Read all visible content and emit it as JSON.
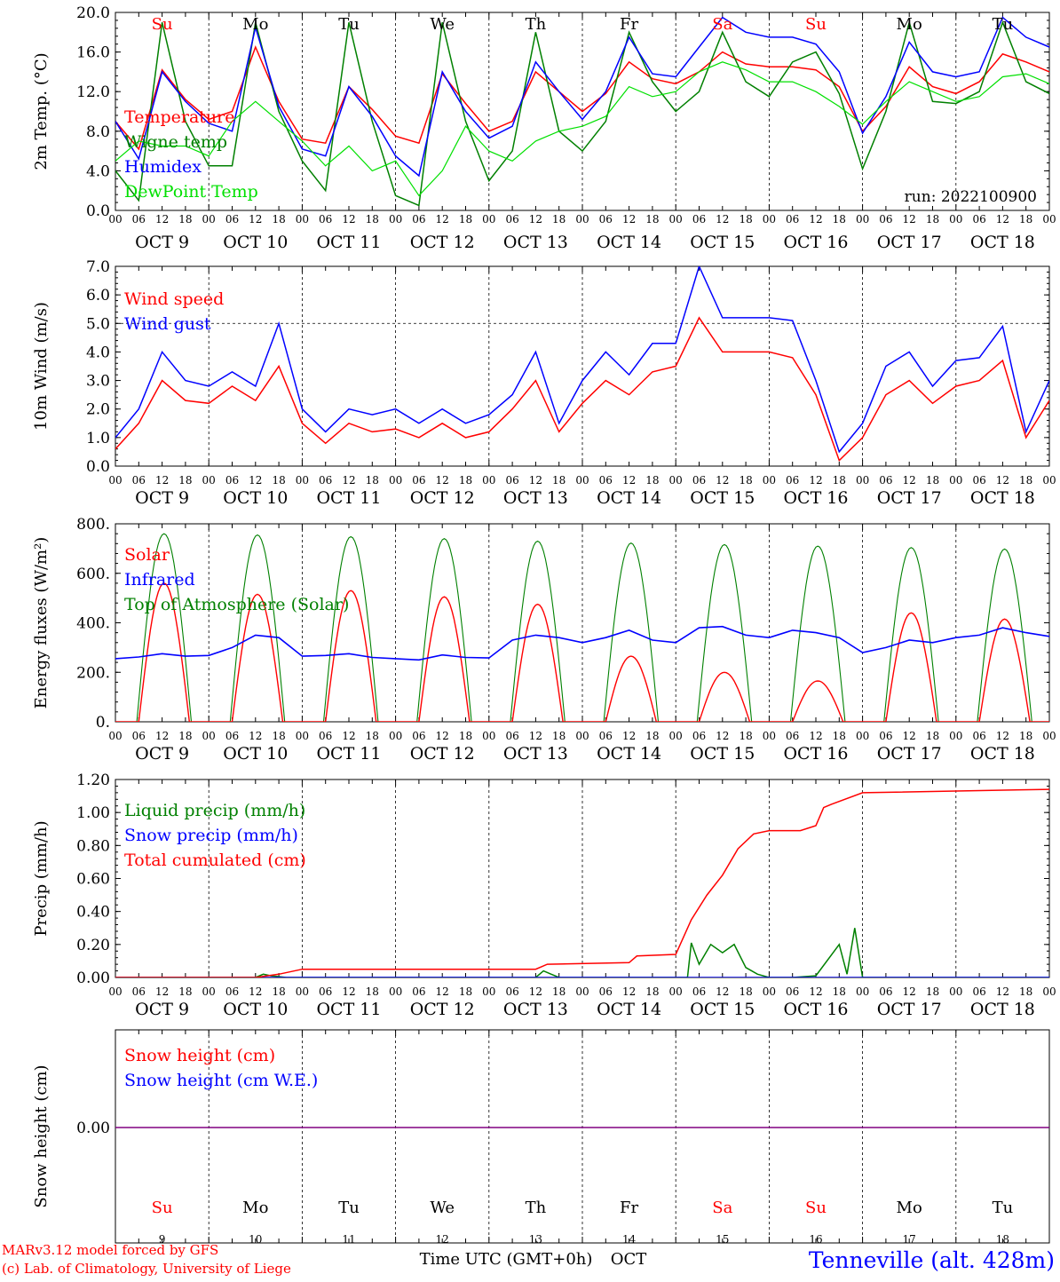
{
  "colors": {
    "red": "#ff0000",
    "green": "#008000",
    "blue": "#0000ff",
    "lightgreen": "#00e000",
    "purple": "#800080",
    "black": "#000000"
  },
  "time_axis": {
    "hour_labels": [
      "00",
      "06",
      "12",
      "18"
    ],
    "final_hour_label": "00",
    "day_labels": [
      "OCT  9",
      "OCT 10",
      "OCT 11",
      "OCT 12",
      "OCT 13",
      "OCT 14",
      "OCT 15",
      "OCT 16",
      "OCT 17",
      "OCT 18"
    ],
    "weekdays": [
      "Su",
      "Mo",
      "Tu",
      "We",
      "Th",
      "Fr",
      "Sa",
      "Su",
      "Mo",
      "Tu"
    ],
    "weekday_colors": [
      "red",
      "black",
      "black",
      "black",
      "black",
      "black",
      "red",
      "red",
      "black",
      "black"
    ],
    "bottom_day_numbers": [
      "9",
      "10",
      "11",
      "12",
      "13",
      "14",
      "15",
      "16",
      "17",
      "18"
    ],
    "bottom_label_left": "Time UTC (GMT+0h)",
    "bottom_label_right": "OCT"
  },
  "footer": {
    "credit_line1": "MARv3.12 model forced by GFS",
    "credit_line2": "(c) Lab. of Climatology, University of Liege",
    "station": "Tenneville (alt. 428m)"
  },
  "chart_data": [
    {
      "type": "line",
      "ylabel": "2m Temp. (°C)",
      "ylim": [
        0,
        20
      ],
      "yticks": [
        "0.0",
        "4.0",
        "8.0",
        "12.0",
        "16.0",
        "20.0"
      ],
      "annotation": "run: 2022100900",
      "x_unit": "hours since OCT 9 00 UTC",
      "series": [
        {
          "name": "Temperature",
          "color": "red",
          "x": [
            0,
            6,
            12,
            18,
            24,
            30,
            36,
            42,
            48,
            54,
            60,
            66,
            72,
            78,
            84,
            90,
            96,
            102,
            108,
            114,
            120,
            126,
            132,
            138,
            144,
            150,
            156,
            162,
            168,
            174,
            180,
            186,
            192,
            198,
            204,
            210,
            216,
            222,
            228,
            234,
            240
          ],
          "y": [
            9,
            6.2,
            14.2,
            11.2,
            9.2,
            10,
            16.5,
            11,
            7.2,
            6.8,
            12.5,
            10.2,
            7.5,
            6.8,
            13.8,
            10.8,
            8,
            9,
            14,
            12,
            10,
            11.8,
            15,
            13.3,
            12.8,
            14,
            16,
            14.8,
            14.5,
            14.5,
            14.2,
            12.5,
            8,
            10.5,
            14.5,
            12.5,
            11.8,
            13,
            15.8,
            15,
            14
          ]
        },
        {
          "name": "Wigne temp",
          "color": "green",
          "x": [
            0,
            6,
            12,
            18,
            24,
            30,
            36,
            42,
            48,
            54,
            60,
            66,
            72,
            78,
            84,
            90,
            96,
            102,
            108,
            114,
            120,
            126,
            132,
            138,
            144,
            150,
            156,
            162,
            168,
            174,
            180,
            186,
            192,
            198,
            204,
            210,
            216,
            222,
            228,
            234,
            240
          ],
          "y": [
            4,
            1,
            19,
            9,
            4.5,
            4.5,
            19,
            10,
            5,
            2,
            19,
            9,
            1.5,
            0.5,
            19,
            9,
            3,
            6,
            18,
            8,
            6,
            9,
            18,
            13,
            10,
            12,
            18,
            13,
            11.5,
            15,
            16,
            11.8,
            4.2,
            10,
            19,
            11,
            10.8,
            12,
            19,
            13,
            11.8
          ]
        },
        {
          "name": "Humidex",
          "color": "blue",
          "x": [
            0,
            6,
            12,
            18,
            24,
            30,
            36,
            42,
            48,
            54,
            60,
            66,
            72,
            78,
            84,
            90,
            96,
            102,
            108,
            114,
            120,
            126,
            132,
            138,
            144,
            150,
            156,
            162,
            168,
            174,
            180,
            186,
            192,
            198,
            204,
            210,
            216,
            222,
            228,
            234,
            240
          ],
          "y": [
            9,
            5.2,
            14,
            11,
            8.8,
            8,
            18.5,
            10.5,
            6.2,
            5.5,
            12.5,
            9.5,
            5.5,
            3.5,
            14,
            10,
            7.3,
            8.5,
            15,
            12,
            9.2,
            12,
            17.5,
            13.8,
            13.5,
            16.5,
            19.5,
            18,
            17.5,
            17.5,
            16.8,
            14,
            7.8,
            11.5,
            17,
            14,
            13.5,
            14,
            19.5,
            17.5,
            16.5
          ]
        },
        {
          "name": "DewPoint Temp",
          "color": "lightgreen",
          "x": [
            0,
            6,
            12,
            18,
            24,
            30,
            36,
            42,
            48,
            54,
            60,
            66,
            72,
            78,
            84,
            90,
            96,
            102,
            108,
            114,
            120,
            126,
            132,
            138,
            144,
            150,
            156,
            162,
            168,
            174,
            180,
            186,
            192,
            198,
            204,
            210,
            216,
            222,
            228,
            234,
            240
          ],
          "y": [
            5,
            7,
            6.5,
            6.5,
            5.5,
            9,
            11,
            9,
            7,
            4.5,
            6.5,
            4,
            5,
            1.5,
            4,
            8.5,
            6,
            5,
            7,
            8,
            8.5,
            9.5,
            12.5,
            11.5,
            12,
            14,
            15,
            14.2,
            13,
            13,
            12,
            10.5,
            8.7,
            11,
            13,
            12,
            11,
            11.5,
            13.5,
            13.8,
            12.8
          ]
        }
      ]
    },
    {
      "type": "line",
      "ylabel": "10m Wind (m/s)",
      "ylim": [
        0,
        7
      ],
      "yticks": [
        "0.0",
        "1.0",
        "2.0",
        "3.0",
        "4.0",
        "5.0",
        "6.0",
        "7.0"
      ],
      "refline": 5,
      "x_unit": "hours since OCT 9 00 UTC",
      "series": [
        {
          "name": "Wind speed",
          "color": "red",
          "x": [
            0,
            6,
            12,
            18,
            24,
            30,
            36,
            42,
            48,
            54,
            60,
            66,
            72,
            78,
            84,
            90,
            96,
            102,
            108,
            114,
            120,
            126,
            132,
            138,
            144,
            150,
            156,
            162,
            168,
            174,
            180,
            186,
            192,
            198,
            204,
            210,
            216,
            222,
            228,
            234,
            240
          ],
          "y": [
            0.6,
            1.5,
            3.0,
            2.3,
            2.2,
            2.8,
            2.3,
            3.5,
            1.5,
            0.8,
            1.5,
            1.2,
            1.3,
            1.0,
            1.5,
            1.0,
            1.2,
            2.0,
            3.0,
            1.2,
            2.2,
            3.0,
            2.5,
            3.3,
            3.5,
            5.2,
            4.0,
            4.0,
            4.0,
            3.8,
            2.5,
            0.2,
            1.0,
            2.5,
            3.0,
            2.2,
            2.8,
            3.0,
            3.7,
            1.0,
            2.3
          ]
        },
        {
          "name": "Wind gust",
          "color": "blue",
          "x": [
            0,
            6,
            12,
            18,
            24,
            30,
            36,
            42,
            48,
            54,
            60,
            66,
            72,
            78,
            84,
            90,
            96,
            102,
            108,
            114,
            120,
            126,
            132,
            138,
            144,
            150,
            156,
            162,
            168,
            174,
            180,
            186,
            192,
            198,
            204,
            210,
            216,
            222,
            228,
            234,
            240
          ],
          "y": [
            1.0,
            2.0,
            4.0,
            3.0,
            2.8,
            3.3,
            2.8,
            5.0,
            2.0,
            1.2,
            2.0,
            1.8,
            2.0,
            1.5,
            2.0,
            1.5,
            1.8,
            2.5,
            4.0,
            1.5,
            3.0,
            4.0,
            3.2,
            4.3,
            4.3,
            7.0,
            5.2,
            5.2,
            5.2,
            5.1,
            3.0,
            0.5,
            1.5,
            3.5,
            4.0,
            2.8,
            3.7,
            3.8,
            4.9,
            1.2,
            3.0
          ]
        }
      ]
    },
    {
      "type": "line",
      "ylabel": "Energy fluxes (W/m²)",
      "ylim": [
        0,
        800
      ],
      "yticks": [
        "0.",
        "200.",
        "400.",
        "600.",
        "800."
      ],
      "x_unit": "hours since OCT 9 00 UTC",
      "diurnal_peaks_toa": [
        760,
        755,
        748,
        740,
        730,
        722,
        716,
        710,
        704,
        698
      ],
      "diurnal_peaks_solar": [
        560,
        515,
        530,
        505,
        475,
        265,
        200,
        165,
        440,
        415
      ],
      "series": [
        {
          "name": "Solar",
          "color": "red"
        },
        {
          "name": "Infrared",
          "color": "blue",
          "x": [
            0,
            6,
            12,
            18,
            24,
            30,
            36,
            42,
            48,
            54,
            60,
            66,
            72,
            78,
            84,
            90,
            96,
            102,
            108,
            114,
            120,
            126,
            132,
            138,
            144,
            150,
            156,
            162,
            168,
            174,
            180,
            186,
            192,
            198,
            204,
            210,
            216,
            222,
            228,
            234,
            240
          ],
          "y": [
            255,
            262,
            275,
            265,
            268,
            300,
            350,
            340,
            265,
            268,
            275,
            260,
            255,
            250,
            270,
            260,
            258,
            330,
            350,
            340,
            320,
            340,
            370,
            330,
            320,
            380,
            385,
            350,
            340,
            370,
            360,
            340,
            280,
            300,
            330,
            320,
            340,
            350,
            380,
            360,
            345
          ]
        },
        {
          "name": "Top of Atmosphere (Solar)",
          "color": "green"
        }
      ]
    },
    {
      "type": "line",
      "ylabel": "Precip (mm/h)",
      "ylim": [
        0,
        1.2
      ],
      "yticks": [
        "0.00",
        "0.20",
        "0.40",
        "0.60",
        "0.80",
        "1.00",
        "1.20"
      ],
      "x_unit": "hours since OCT 9 00 UTC",
      "series": [
        {
          "name": "Liquid precip (mm/h)",
          "color": "green",
          "x": [
            0,
            36,
            38,
            40,
            44,
            48,
            108,
            110,
            112,
            114,
            144,
            147,
            148,
            150,
            153,
            156,
            159,
            162,
            165,
            168,
            171,
            174,
            180,
            186,
            188,
            190,
            192,
            195,
            240
          ],
          "y": [
            0,
            0,
            0.02,
            0.01,
            0,
            0,
            0,
            0.04,
            0.02,
            0,
            0,
            0,
            0.21,
            0.08,
            0.2,
            0.15,
            0.2,
            0.06,
            0.02,
            0,
            0,
            0,
            0.01,
            0.2,
            0.02,
            0.3,
            0,
            0,
            0
          ]
        },
        {
          "name": "Snow precip (mm/h)",
          "color": "blue",
          "x": [
            0,
            240
          ],
          "y": [
            0,
            0
          ]
        },
        {
          "name": "Total cumulated (cm)",
          "color": "red",
          "x": [
            0,
            36,
            42,
            48,
            108,
            111,
            132,
            134,
            144,
            148,
            152,
            156,
            160,
            164,
            168,
            176,
            180,
            182,
            184,
            192,
            240
          ],
          "y": [
            0,
            0,
            0.02,
            0.05,
            0.05,
            0.08,
            0.09,
            0.13,
            0.14,
            0.35,
            0.5,
            0.62,
            0.78,
            0.87,
            0.89,
            0.89,
            0.92,
            1.03,
            1.05,
            1.12,
            1.14
          ]
        }
      ]
    },
    {
      "type": "line",
      "ylabel": "Snow height (cm)",
      "yticks": [
        "0.00"
      ],
      "x_unit": "hours since OCT 9 00 UTC",
      "series": [
        {
          "name": "Snow height (cm)",
          "color": "red",
          "x": [
            0,
            240
          ],
          "y": [
            0,
            0
          ]
        },
        {
          "name": "Snow height (cm W.E.)",
          "color": "blue",
          "x": [
            0,
            240
          ],
          "y": [
            0,
            0
          ]
        }
      ]
    }
  ]
}
